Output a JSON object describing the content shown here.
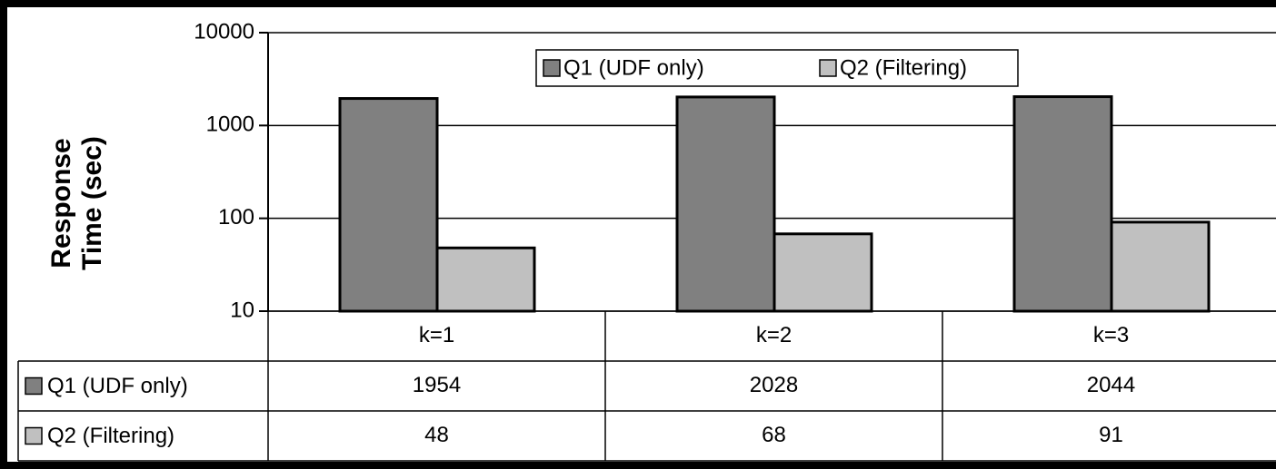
{
  "chart_data": {
    "type": "bar",
    "y_label": "Response Time (sec)",
    "categories": [
      "k=1",
      "k=2",
      "k=3"
    ],
    "series": [
      {
        "name": "Q1 (UDF only)",
        "color": "#808080",
        "values": [
          1954,
          2028,
          2044
        ]
      },
      {
        "name": "Q2 (Filtering)",
        "color": "#c0c0c0",
        "values": [
          48,
          68,
          91
        ]
      }
    ],
    "ylim": [
      10,
      10000
    ],
    "yticks": [
      10,
      100,
      1000,
      10000
    ],
    "log_scale": true,
    "grid": true,
    "legend": "top",
    "data_table": true
  }
}
